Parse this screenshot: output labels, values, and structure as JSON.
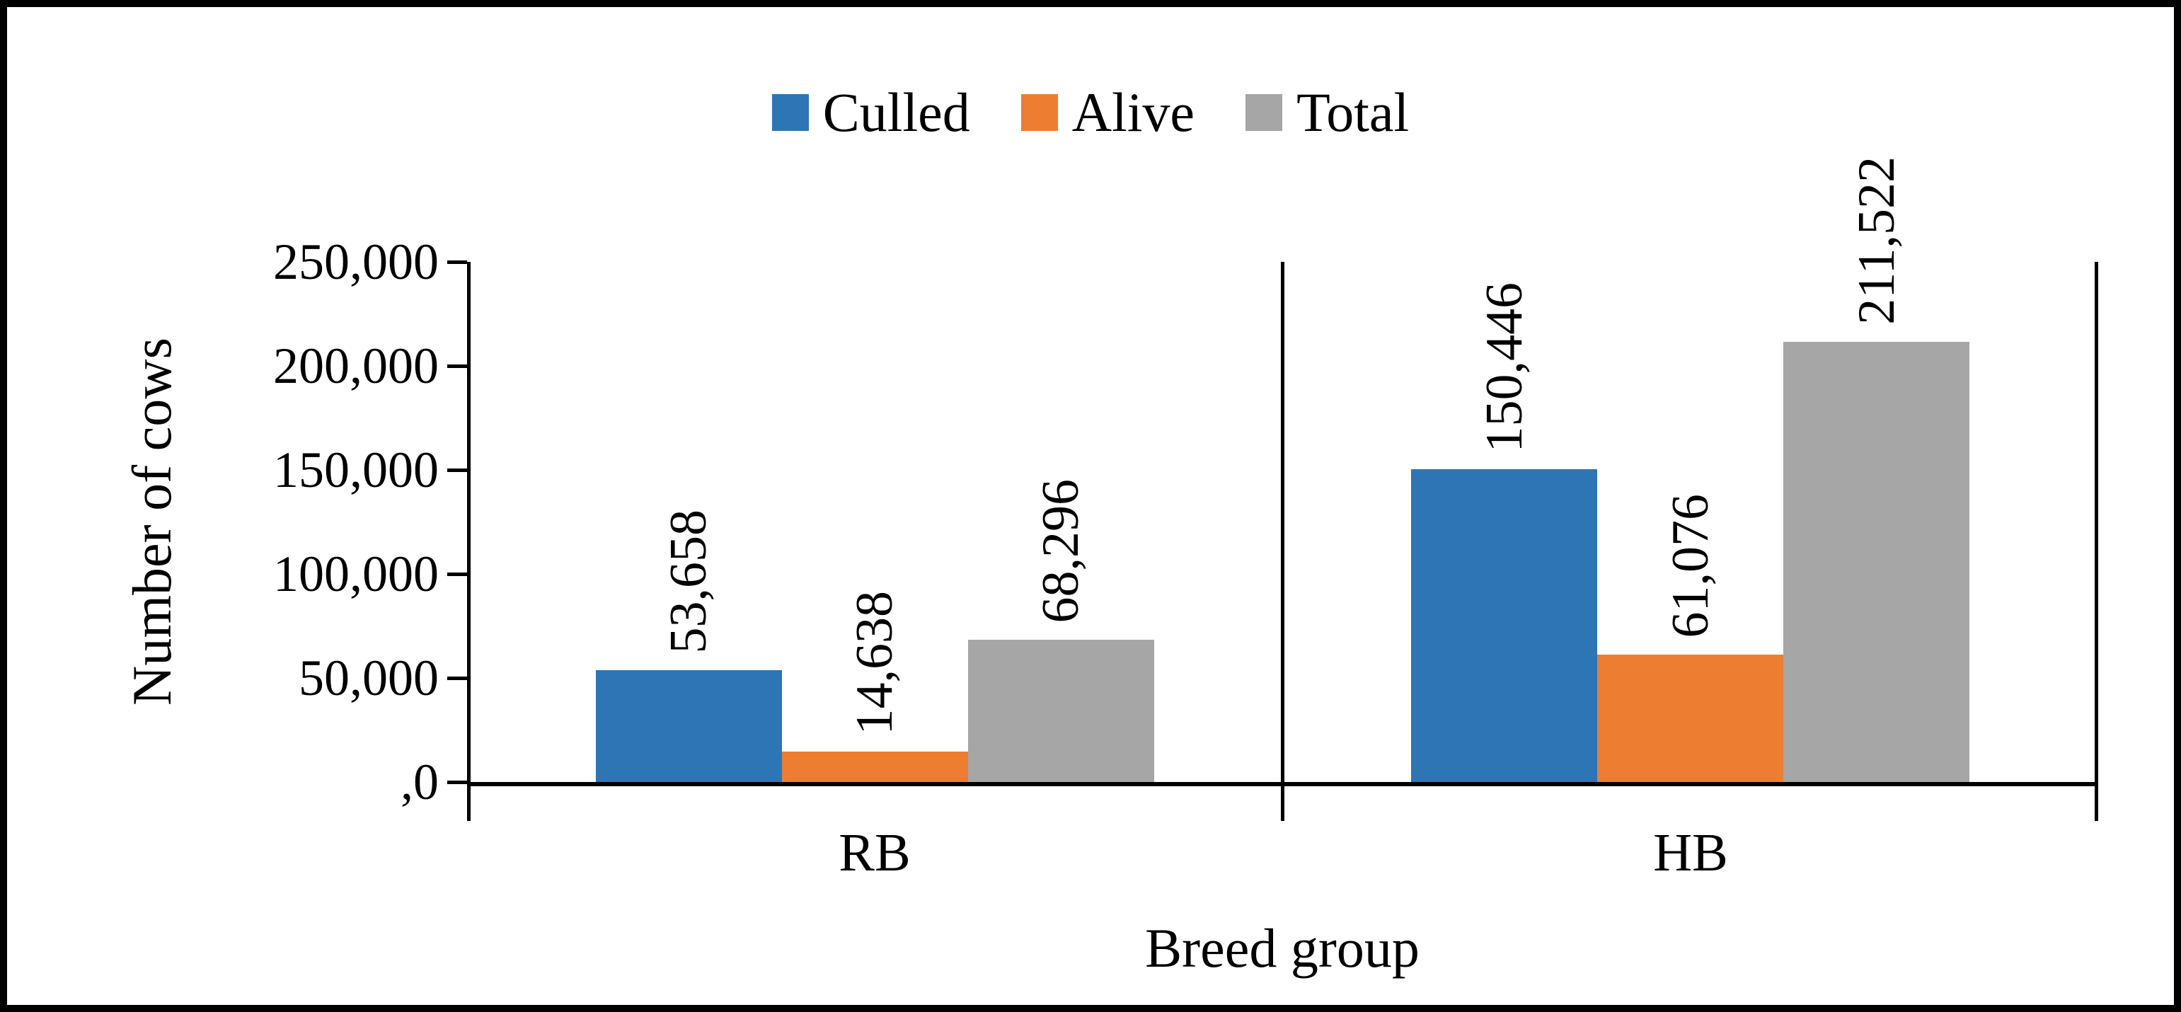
{
  "chart_data": {
    "type": "bar",
    "title": "",
    "xlabel": "Breed group",
    "ylabel": "Number of cows",
    "categories": [
      "RB",
      "HB"
    ],
    "series": [
      {
        "name": "Culled",
        "color": "#2E75B6",
        "values": [
          53658,
          150446
        ],
        "labels": [
          "53,658",
          "150,446"
        ]
      },
      {
        "name": "Alive",
        "color": "#ED7D31",
        "values": [
          14638,
          61076
        ],
        "labels": [
          "14,638",
          "61,076"
        ]
      },
      {
        "name": "Total",
        "color": "#A6A6A6",
        "values": [
          68296,
          211522
        ],
        "labels": [
          "68,296",
          "211,522"
        ]
      }
    ],
    "ylim": [
      0,
      250000
    ],
    "yticks": [
      {
        "value": 0,
        "label": ",0"
      },
      {
        "value": 50000,
        "label": "50,000"
      },
      {
        "value": 100000,
        "label": "100,000"
      },
      {
        "value": 150000,
        "label": "150,000"
      },
      {
        "value": 200000,
        "label": "200,000"
      },
      {
        "value": 250000,
        "label": "250,000"
      }
    ],
    "legend_position": "top",
    "grid": false,
    "frame_color": "#000000"
  }
}
